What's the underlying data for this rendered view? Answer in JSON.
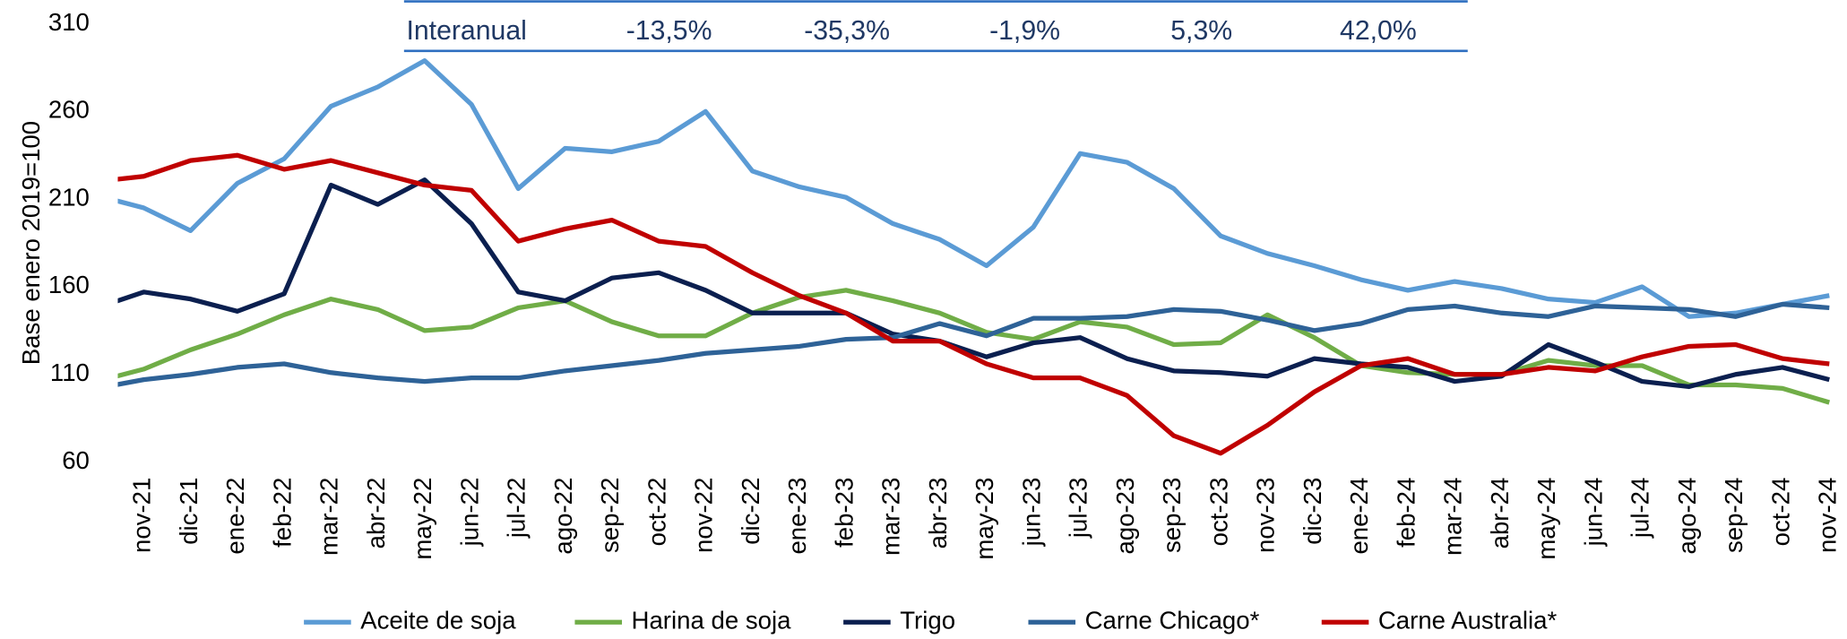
{
  "chart_data": {
    "type": "line",
    "y_label": "Base enero 2019=100",
    "annotation": {
      "label": "Interanual",
      "values": [
        "-13,5%",
        "-35,3%",
        "-1,9%",
        "5,3%",
        "42,0%"
      ]
    },
    "categories": [
      null,
      "nov-21",
      "dic-21",
      "ene-22",
      "feb-22",
      "mar-22",
      "abr-22",
      "may-22",
      "jun-22",
      "jul-22",
      "ago-22",
      "sep-22",
      "oct-22",
      "nov-22",
      "dic-22",
      "ene-23",
      "feb-23",
      "mar-23",
      "abr-23",
      "may-23",
      "jun-23",
      "jul-23",
      "ago-23",
      "sep-23",
      "oct-23",
      "nov-23",
      "dic-23",
      "ene-24",
      "feb-24",
      "mar-24",
      "abr-24",
      "may-24",
      "jun-24",
      "jul-24",
      "ago-24",
      "sep-24",
      "oct-24",
      "nov-24"
    ],
    "ylim": [
      60,
      310
    ],
    "yticks": [
      60,
      110,
      160,
      210,
      260,
      310
    ],
    "grid": false,
    "legend": "bottom",
    "series": [
      {
        "name": "Aceite de soja",
        "color": "#5b9bd5",
        "values": [
          212,
          205,
          192,
          219,
          233,
          263,
          274,
          289,
          264,
          216,
          239,
          237,
          243,
          260,
          226,
          217,
          211,
          196,
          187,
          172,
          194,
          236,
          231,
          216,
          189,
          179,
          172,
          164,
          158,
          163,
          159,
          153,
          151,
          160,
          143,
          145,
          150,
          155
        ]
      },
      {
        "name": "Harina de soja",
        "color": "#70ad47",
        "values": [
          106,
          113,
          124,
          133,
          144,
          153,
          147,
          135,
          137,
          148,
          152,
          140,
          132,
          132,
          145,
          154,
          158,
          152,
          145,
          134,
          130,
          140,
          137,
          127,
          128,
          144,
          131,
          115,
          111,
          110,
          110,
          118,
          115,
          115,
          104,
          104,
          102,
          94
        ]
      },
      {
        "name": "Trigo",
        "color": "#0b1f4f",
        "values": [
          148,
          157,
          153,
          146,
          156,
          218,
          207,
          221,
          196,
          157,
          152,
          165,
          168,
          158,
          145,
          145,
          145,
          133,
          129,
          120,
          128,
          131,
          119,
          112,
          111,
          109,
          119,
          116,
          114,
          106,
          109,
          127,
          117,
          106,
          103,
          110,
          114,
          107
        ]
      },
      {
        "name": "Carne Chicago*",
        "color": "#2e6297",
        "values": [
          102,
          107,
          110,
          114,
          116,
          111,
          108,
          106,
          108,
          108,
          112,
          115,
          118,
          122,
          124,
          126,
          130,
          131,
          139,
          132,
          142,
          142,
          143,
          147,
          146,
          141,
          135,
          139,
          147,
          149,
          145,
          143,
          149,
          148,
          147,
          143,
          150,
          148
        ]
      },
      {
        "name": "Carne Australia*",
        "color": "#c00000",
        "values": [
          220,
          223,
          232,
          235,
          227,
          232,
          225,
          218,
          215,
          186,
          193,
          198,
          186,
          183,
          168,
          155,
          145,
          129,
          129,
          116,
          108,
          108,
          98,
          75,
          65,
          81,
          100,
          115,
          119,
          110,
          110,
          114,
          112,
          120,
          126,
          127,
          119,
          116
        ]
      }
    ]
  }
}
